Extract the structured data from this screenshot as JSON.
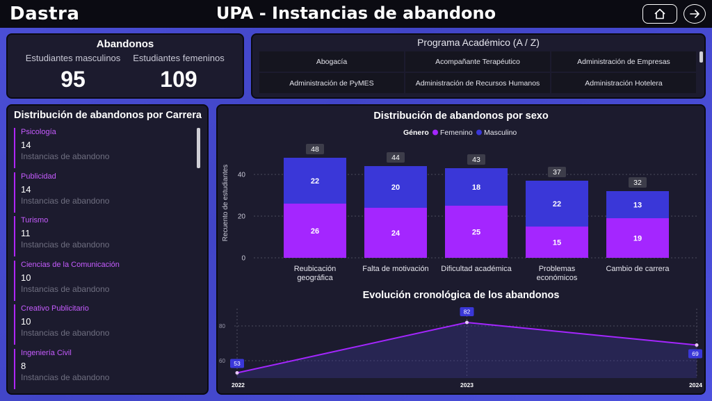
{
  "header": {
    "logo": "Dastra",
    "title": "UPA - Instancias de abandono"
  },
  "kpi": {
    "title": "Abandonos",
    "male_label": "Estudiantes masculinos",
    "male_value": "95",
    "female_label": "Estudiantes femeninos",
    "female_value": "109"
  },
  "programs": {
    "title": "Programa Académico (A / Z)",
    "items": [
      "Abogacía",
      "Acompañante Terapéutico",
      "Administración de Empresas",
      "Administración de PyMES",
      "Administración de Recursos Humanos",
      "Administración Hotelera"
    ]
  },
  "careers": {
    "title": "Distribución de abandonos por Carrera",
    "sub_label": "Instancias de abandono",
    "items": [
      {
        "name": "Psicología",
        "count": "14"
      },
      {
        "name": "Publicidad",
        "count": "14"
      },
      {
        "name": "Turismo",
        "count": "11"
      },
      {
        "name": "Ciencias de la Comunicación",
        "count": "10"
      },
      {
        "name": "Creativo Publicitario",
        "count": "10"
      },
      {
        "name": "Ingeniería Civil",
        "count": "8"
      }
    ]
  },
  "chart_data": [
    {
      "type": "bar",
      "title": "Distribución de abandonos por sexo",
      "legend_title": "Género",
      "legend_position": "top-center",
      "ylabel": "Recuento de estudiantes",
      "ylim": [
        0,
        50
      ],
      "yticks": [
        "0",
        "20",
        "40"
      ],
      "categories": [
        "Reubicación geográfica",
        "Falta de motivación",
        "Dificultad académica",
        "Problemas económicos",
        "Cambio de carrera"
      ],
      "category_lines": [
        [
          "Reubicación",
          "geográfica"
        ],
        [
          "Falta de motivación"
        ],
        [
          "Dificultad académica"
        ],
        [
          "Problemas",
          "económicos"
        ],
        [
          "Cambio de carrera"
        ]
      ],
      "totals": [
        "48",
        "44",
        "43",
        "37",
        "32"
      ],
      "series": [
        {
          "name": "Femenino",
          "color": "#a426ff",
          "values": [
            26,
            24,
            25,
            15,
            19
          ]
        },
        {
          "name": "Masculino",
          "color": "#3a37d8",
          "values": [
            22,
            20,
            18,
            22,
            13
          ]
        }
      ]
    },
    {
      "type": "line",
      "title": "Evolución cronológica de los abandonos",
      "x": [
        "2022",
        "2023",
        "2024"
      ],
      "values": [
        53,
        82,
        69
      ],
      "yticks": [
        "60",
        "80"
      ],
      "ylim": [
        50,
        90
      ],
      "color": "#a426ff"
    }
  ]
}
